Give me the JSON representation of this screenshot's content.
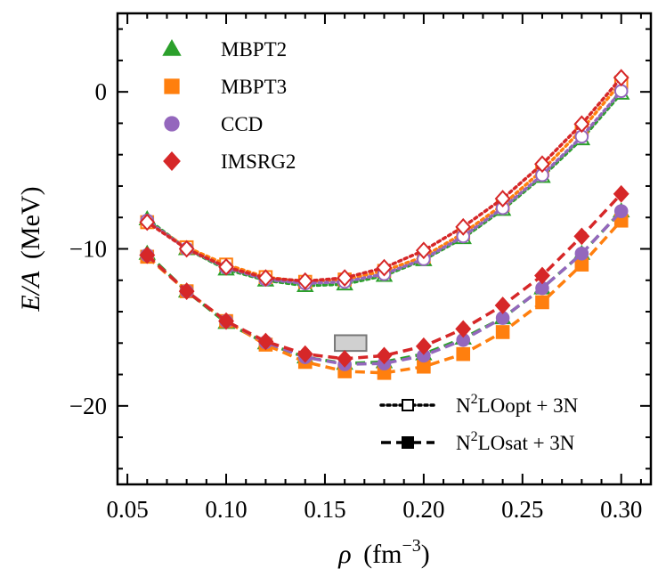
{
  "chart_data": {
    "type": "line",
    "xlabel": {
      "symbol": "ρ",
      "unit": "(fm",
      "exponent": "−3",
      "close": ")"
    },
    "ylabel": {
      "symbol": "E/A",
      "unit": "(MeV)"
    },
    "xlim": [
      0.045,
      0.315
    ],
    "ylim": [
      -25,
      5
    ],
    "xticks": [
      0.05,
      0.1,
      0.15,
      0.2,
      0.25,
      0.3
    ],
    "xtick_labels": [
      "0.05",
      "0.10",
      "0.15",
      "0.20",
      "0.25",
      "0.30"
    ],
    "yticks": [
      -20,
      -10,
      0
    ],
    "ytick_labels": [
      "−20",
      "−10",
      "0"
    ],
    "x": [
      0.06,
      0.08,
      0.1,
      0.12,
      0.14,
      0.16,
      0.18,
      0.2,
      0.22,
      0.24,
      0.26,
      0.28,
      0.3
    ],
    "methods": [
      {
        "name": "MBPT2",
        "color": "#2ca02c",
        "marker": "triangle"
      },
      {
        "name": "MBPT3",
        "color": "#ff7f0e",
        "marker": "square"
      },
      {
        "name": "CCD",
        "color": "#9467bd",
        "marker": "circle"
      },
      {
        "name": "IMSRG2",
        "color": "#d62728",
        "marker": "diamond"
      }
    ],
    "interactions": [
      {
        "name": "N2LOopt + 3N",
        "label_base": "N",
        "label_sup": "2",
        "label_rest": "LOopt + 3N",
        "line": "dotted",
        "filled": false
      },
      {
        "name": "N2LOsat + 3N",
        "label_base": "N",
        "label_sup": "2",
        "label_rest": "LOsat + 3N",
        "line": "dashed",
        "filled": true
      }
    ],
    "series": [
      {
        "method": "MBPT2",
        "interaction": "N2LOopt + 3N",
        "values": [
          -8.1,
          -10.0,
          -11.3,
          -12.0,
          -12.35,
          -12.25,
          -11.7,
          -10.7,
          -9.3,
          -7.5,
          -5.4,
          -3.0,
          -0.1
        ]
      },
      {
        "method": "MBPT3",
        "interaction": "N2LOopt + 3N",
        "values": [
          -8.3,
          -9.9,
          -11.0,
          -11.8,
          -12.1,
          -11.95,
          -11.4,
          -10.5,
          -9.0,
          -7.2,
          -5.0,
          -2.4,
          0.6
        ]
      },
      {
        "method": "CCD",
        "interaction": "N2LOopt + 3N",
        "values": [
          -8.2,
          -10.0,
          -11.2,
          -11.95,
          -12.2,
          -12.1,
          -11.6,
          -10.65,
          -9.2,
          -7.4,
          -5.3,
          -2.85,
          0.05
        ]
      },
      {
        "method": "IMSRG2",
        "interaction": "N2LOopt + 3N",
        "values": [
          -8.3,
          -10.0,
          -11.15,
          -11.85,
          -12.05,
          -11.85,
          -11.2,
          -10.1,
          -8.6,
          -6.8,
          -4.6,
          -2.05,
          0.9
        ]
      },
      {
        "method": "MBPT2",
        "interaction": "N2LOsat + 3N",
        "values": [
          -10.3,
          -12.7,
          -14.7,
          -16.0,
          -16.9,
          -17.3,
          -17.2,
          -16.7,
          -15.7,
          -14.4,
          -12.5,
          -10.3,
          -7.6
        ]
      },
      {
        "method": "MBPT3",
        "interaction": "N2LOsat + 3N",
        "values": [
          -10.5,
          -12.7,
          -14.6,
          -16.1,
          -17.2,
          -17.8,
          -17.9,
          -17.5,
          -16.7,
          -15.3,
          -13.4,
          -11.0,
          -8.2
        ]
      },
      {
        "method": "CCD",
        "interaction": "N2LOsat + 3N",
        "values": [
          -10.4,
          -12.7,
          -14.6,
          -15.95,
          -16.9,
          -17.35,
          -17.3,
          -16.8,
          -15.8,
          -14.4,
          -12.5,
          -10.3,
          -7.6
        ]
      },
      {
        "method": "IMSRG2",
        "interaction": "N2LOsat + 3N",
        "values": [
          -10.4,
          -12.7,
          -14.6,
          -15.9,
          -16.7,
          -17.0,
          -16.8,
          -16.2,
          -15.1,
          -13.6,
          -11.7,
          -9.2,
          -6.5
        ]
      }
    ],
    "saturation_box": {
      "x_range": [
        0.155,
        0.171
      ],
      "y_range": [
        -16.5,
        -15.5
      ],
      "color": "#d0d0d0"
    }
  }
}
